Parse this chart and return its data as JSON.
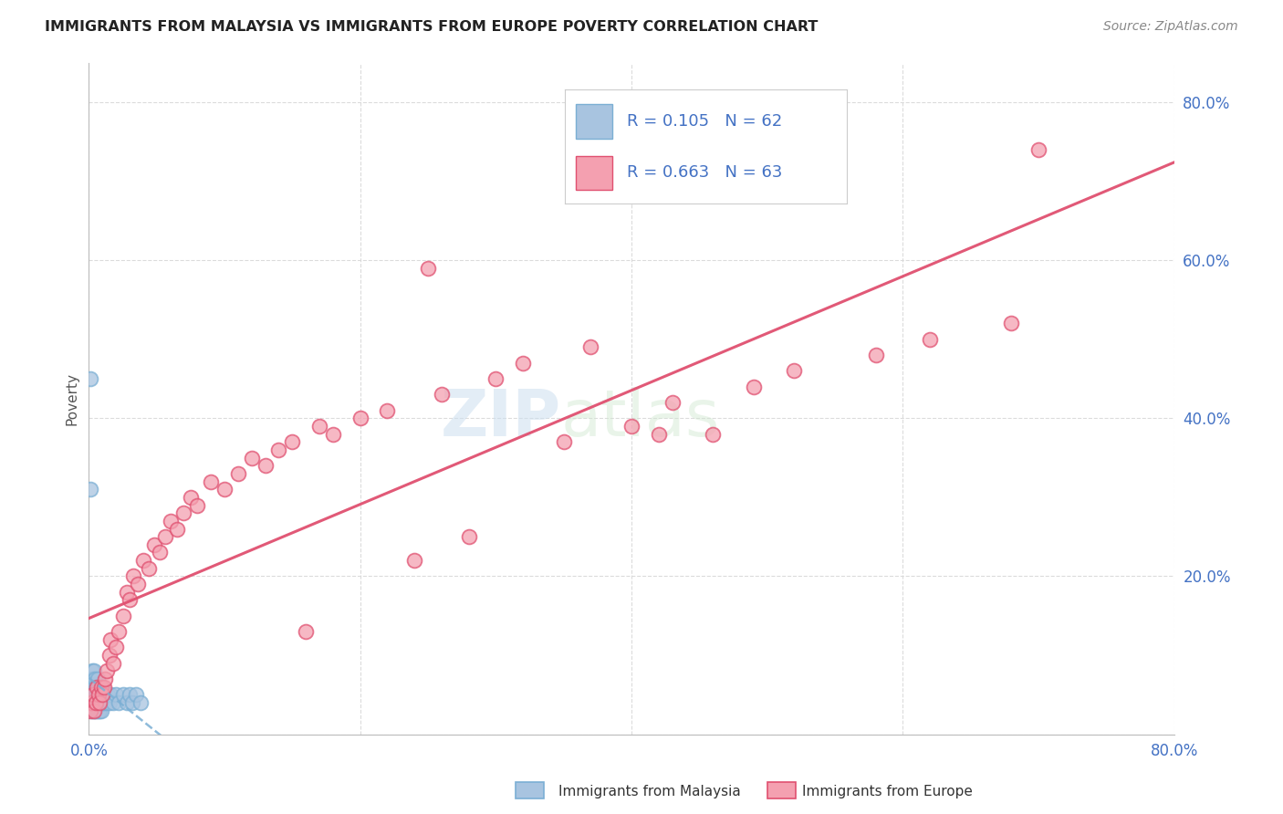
{
  "title": "IMMIGRANTS FROM MALAYSIA VS IMMIGRANTS FROM EUROPE POVERTY CORRELATION CHART",
  "source": "Source: ZipAtlas.com",
  "ylabel": "Poverty",
  "x_min": 0.0,
  "x_max": 0.8,
  "y_min": 0.0,
  "y_max": 0.85,
  "R_malaysia": 0.105,
  "N_malaysia": 62,
  "R_europe": 0.663,
  "N_europe": 63,
  "color_malaysia": "#a8c4e0",
  "color_europe": "#f4a0b0",
  "line_malaysia": "#7bafd4",
  "line_europe": "#e05070",
  "watermark_zip": "ZIP",
  "watermark_atlas": "atlas",
  "background_color": "#ffffff",
  "grid_color": "#d8d8d8",
  "malaysia_x": [
    0.0008,
    0.001,
    0.0012,
    0.0015,
    0.0015,
    0.0018,
    0.002,
    0.002,
    0.0022,
    0.0022,
    0.0025,
    0.0025,
    0.0028,
    0.003,
    0.003,
    0.003,
    0.0032,
    0.0035,
    0.0035,
    0.0038,
    0.004,
    0.004,
    0.0042,
    0.0045,
    0.005,
    0.005,
    0.0052,
    0.0055,
    0.006,
    0.006,
    0.0062,
    0.0065,
    0.007,
    0.007,
    0.0072,
    0.0075,
    0.008,
    0.008,
    0.0082,
    0.009,
    0.009,
    0.0095,
    0.01,
    0.01,
    0.011,
    0.011,
    0.012,
    0.013,
    0.014,
    0.015,
    0.016,
    0.018,
    0.02,
    0.022,
    0.025,
    0.028,
    0.03,
    0.032,
    0.035,
    0.038,
    0.001,
    0.001
  ],
  "malaysia_y": [
    0.06,
    0.05,
    0.07,
    0.04,
    0.06,
    0.05,
    0.03,
    0.06,
    0.04,
    0.07,
    0.05,
    0.08,
    0.04,
    0.03,
    0.05,
    0.07,
    0.04,
    0.06,
    0.08,
    0.05,
    0.03,
    0.06,
    0.04,
    0.07,
    0.03,
    0.05,
    0.06,
    0.04,
    0.03,
    0.05,
    0.07,
    0.04,
    0.03,
    0.06,
    0.05,
    0.04,
    0.03,
    0.05,
    0.06,
    0.04,
    0.05,
    0.03,
    0.04,
    0.06,
    0.05,
    0.04,
    0.05,
    0.04,
    0.05,
    0.04,
    0.05,
    0.04,
    0.05,
    0.04,
    0.05,
    0.04,
    0.05,
    0.04,
    0.05,
    0.04,
    0.45,
    0.31
  ],
  "europe_x": [
    0.001,
    0.002,
    0.003,
    0.004,
    0.005,
    0.006,
    0.007,
    0.008,
    0.009,
    0.01,
    0.011,
    0.012,
    0.013,
    0.015,
    0.016,
    0.018,
    0.02,
    0.022,
    0.025,
    0.028,
    0.03,
    0.033,
    0.036,
    0.04,
    0.044,
    0.048,
    0.052,
    0.056,
    0.06,
    0.065,
    0.07,
    0.075,
    0.08,
    0.09,
    0.1,
    0.11,
    0.12,
    0.13,
    0.14,
    0.15,
    0.16,
    0.17,
    0.18,
    0.2,
    0.22,
    0.24,
    0.26,
    0.28,
    0.3,
    0.32,
    0.35,
    0.37,
    0.4,
    0.43,
    0.46,
    0.49,
    0.52,
    0.58,
    0.62,
    0.68,
    0.7,
    0.25,
    0.42
  ],
  "europe_y": [
    0.03,
    0.04,
    0.05,
    0.03,
    0.04,
    0.06,
    0.05,
    0.04,
    0.06,
    0.05,
    0.06,
    0.07,
    0.08,
    0.1,
    0.12,
    0.09,
    0.11,
    0.13,
    0.15,
    0.18,
    0.17,
    0.2,
    0.19,
    0.22,
    0.21,
    0.24,
    0.23,
    0.25,
    0.27,
    0.26,
    0.28,
    0.3,
    0.29,
    0.32,
    0.31,
    0.33,
    0.35,
    0.34,
    0.36,
    0.37,
    0.13,
    0.39,
    0.38,
    0.4,
    0.41,
    0.22,
    0.43,
    0.25,
    0.45,
    0.47,
    0.37,
    0.49,
    0.39,
    0.42,
    0.38,
    0.44,
    0.46,
    0.48,
    0.5,
    0.52,
    0.74,
    0.59,
    0.38
  ]
}
